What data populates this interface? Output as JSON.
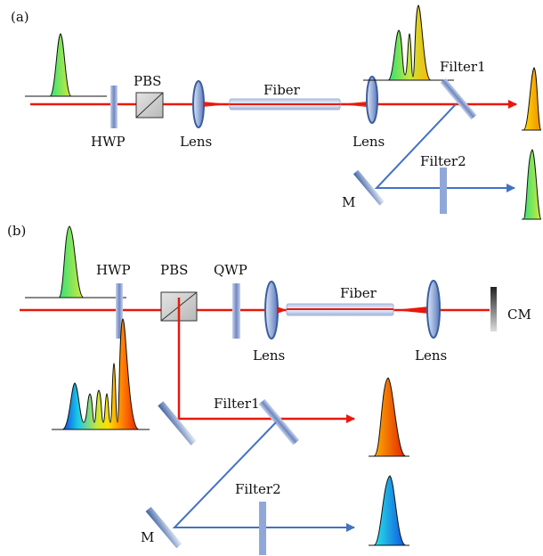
{
  "panel_a": {
    "tag": "(a)",
    "labels": {
      "hwp": "HWP",
      "pbs": "PBS",
      "lens_left": "Lens",
      "fiber": "Fiber",
      "lens_right": "Lens",
      "filter1": "Filter1",
      "filter2": "Filter2",
      "mirror": "M"
    }
  },
  "panel_b": {
    "tag": "(b)",
    "labels": {
      "hwp": "HWP",
      "pbs": "PBS",
      "qwp": "QWP",
      "lens_left": "Lens",
      "fiber": "Fiber",
      "lens_right": "Lens",
      "cm": "CM",
      "filter1": "Filter1",
      "filter2": "Filter2",
      "mirror": "M"
    }
  },
  "colors": {
    "laser": "#e8180c",
    "blue_path": "#4472c4",
    "optic": "#8fa8d8",
    "lens": "#3a5fa0"
  }
}
